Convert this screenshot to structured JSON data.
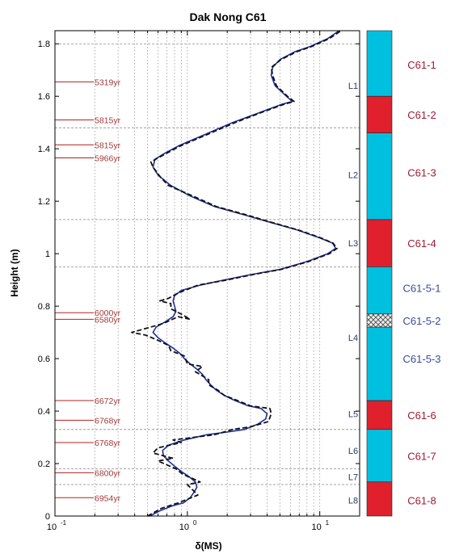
{
  "chart_data": {
    "type": "line",
    "title": "Dak Nong C61",
    "xlabel": "δ(MS)",
    "ylabel": "Height (m)",
    "xscale": "log",
    "xlim": [
      0.1,
      20
    ],
    "ylim": [
      0,
      1.85
    ],
    "x_ticks": [
      {
        "value": 0.1,
        "base": "10",
        "exp": "-1"
      },
      {
        "value": 1,
        "base": "10",
        "exp": "0"
      },
      {
        "value": 10,
        "base": "10",
        "exp": "1"
      }
    ],
    "y_ticks": [
      {
        "value": 0,
        "label": "0"
      },
      {
        "value": 0.2,
        "label": "0.2"
      },
      {
        "value": 0.4,
        "label": "0.4"
      },
      {
        "value": 0.6,
        "label": "0.6"
      },
      {
        "value": 0.8,
        "label": "0.8"
      },
      {
        "value": 1.0,
        "label": "1"
      },
      {
        "value": 1.2,
        "label": "1.2"
      },
      {
        "value": 1.4,
        "label": "1.4"
      },
      {
        "value": 1.6,
        "label": "1.6"
      },
      {
        "value": 1.8,
        "label": "1.8"
      }
    ],
    "grid": "vertical dotted at log minor ticks",
    "series": [
      {
        "style": "solid",
        "color": "#1f2f9a",
        "points": [
          [
            0.52,
            0.0
          ],
          [
            0.62,
            0.02
          ],
          [
            0.78,
            0.04
          ],
          [
            0.93,
            0.05
          ],
          [
            1.05,
            0.07
          ],
          [
            1.12,
            0.09
          ],
          [
            1.18,
            0.11
          ],
          [
            1.15,
            0.13
          ],
          [
            1.03,
            0.15
          ],
          [
            0.9,
            0.17
          ],
          [
            0.8,
            0.19
          ],
          [
            0.72,
            0.21
          ],
          [
            0.66,
            0.23
          ],
          [
            0.65,
            0.25
          ],
          [
            0.72,
            0.27
          ],
          [
            0.95,
            0.29
          ],
          [
            1.4,
            0.31
          ],
          [
            2.0,
            0.32
          ],
          [
            2.7,
            0.33
          ],
          [
            3.4,
            0.35
          ],
          [
            3.9,
            0.37
          ],
          [
            4.0,
            0.39
          ],
          [
            3.6,
            0.41
          ],
          [
            2.9,
            0.42
          ],
          [
            2.3,
            0.44
          ],
          [
            1.9,
            0.46
          ],
          [
            1.65,
            0.48
          ],
          [
            1.5,
            0.5
          ],
          [
            1.38,
            0.52
          ],
          [
            1.3,
            0.54
          ],
          [
            1.18,
            0.56
          ],
          [
            1.05,
            0.58
          ],
          [
            0.95,
            0.6
          ],
          [
            0.88,
            0.62
          ],
          [
            0.78,
            0.64
          ],
          [
            0.68,
            0.66
          ],
          [
            0.6,
            0.68
          ],
          [
            0.55,
            0.7
          ],
          [
            0.58,
            0.72
          ],
          [
            0.68,
            0.74
          ],
          [
            0.78,
            0.76
          ],
          [
            0.82,
            0.78
          ],
          [
            0.8,
            0.8
          ],
          [
            0.78,
            0.82
          ],
          [
            0.8,
            0.84
          ],
          [
            0.9,
            0.86
          ],
          [
            1.25,
            0.88
          ],
          [
            1.9,
            0.9
          ],
          [
            3.0,
            0.92
          ],
          [
            5.0,
            0.94
          ],
          [
            8.0,
            0.97
          ],
          [
            11.5,
            1.0
          ],
          [
            13.2,
            1.02
          ],
          [
            12.5,
            1.04
          ],
          [
            10.0,
            1.06
          ],
          [
            6.8,
            1.09
          ],
          [
            4.2,
            1.12
          ],
          [
            2.6,
            1.15
          ],
          [
            1.6,
            1.18
          ],
          [
            1.05,
            1.22
          ],
          [
            0.75,
            1.26
          ],
          [
            0.6,
            1.3
          ],
          [
            0.55,
            1.33
          ],
          [
            0.57,
            1.36
          ],
          [
            0.66,
            1.38
          ],
          [
            0.85,
            1.41
          ],
          [
            1.3,
            1.45
          ],
          [
            2.2,
            1.5
          ],
          [
            3.6,
            1.54
          ],
          [
            5.2,
            1.57
          ],
          [
            6.2,
            1.58
          ],
          [
            5.6,
            1.6
          ],
          [
            4.6,
            1.64
          ],
          [
            4.3,
            1.68
          ],
          [
            4.4,
            1.71
          ],
          [
            5.0,
            1.74
          ],
          [
            6.5,
            1.77
          ],
          [
            8.5,
            1.79
          ],
          [
            11.5,
            1.82
          ],
          [
            14.0,
            1.85
          ]
        ]
      },
      {
        "style": "dashed",
        "color": "#111111",
        "points": [
          [
            0.5,
            0.0
          ],
          [
            0.64,
            0.03
          ],
          [
            0.85,
            0.05
          ],
          [
            1.2,
            0.08
          ],
          [
            1.0,
            0.12
          ],
          [
            1.25,
            0.13
          ],
          [
            0.92,
            0.16
          ],
          [
            0.82,
            0.18
          ],
          [
            0.6,
            0.21
          ],
          [
            0.78,
            0.22
          ],
          [
            0.55,
            0.24
          ],
          [
            0.6,
            0.26
          ],
          [
            0.9,
            0.28
          ],
          [
            0.78,
            0.29
          ],
          [
            1.6,
            0.31
          ],
          [
            2.2,
            0.33
          ],
          [
            3.0,
            0.34
          ],
          [
            4.1,
            0.36
          ],
          [
            4.3,
            0.39
          ],
          [
            4.2,
            0.41
          ],
          [
            3.0,
            0.42
          ],
          [
            2.4,
            0.44
          ],
          [
            1.9,
            0.46
          ],
          [
            1.7,
            0.48
          ],
          [
            1.45,
            0.5
          ],
          [
            1.45,
            0.52
          ],
          [
            1.15,
            0.55
          ],
          [
            1.3,
            0.57
          ],
          [
            1.0,
            0.58
          ],
          [
            0.95,
            0.61
          ],
          [
            0.75,
            0.63
          ],
          [
            0.72,
            0.65
          ],
          [
            0.6,
            0.67
          ],
          [
            0.48,
            0.69
          ],
          [
            0.38,
            0.7
          ],
          [
            0.62,
            0.73
          ],
          [
            0.7,
            0.74
          ],
          [
            0.85,
            0.76
          ],
          [
            1.05,
            0.75
          ],
          [
            0.9,
            0.77
          ],
          [
            0.75,
            0.79
          ],
          [
            0.75,
            0.81
          ],
          [
            0.62,
            0.82
          ],
          [
            0.72,
            0.83
          ],
          [
            0.85,
            0.85
          ],
          [
            1.2,
            0.88
          ],
          [
            2.0,
            0.9
          ],
          [
            3.1,
            0.92
          ],
          [
            5.1,
            0.94
          ],
          [
            8.2,
            0.97
          ],
          [
            11.8,
            1.0
          ],
          [
            13.5,
            1.02
          ],
          [
            12.6,
            1.04
          ],
          [
            10.2,
            1.06
          ],
          [
            6.9,
            1.09
          ],
          [
            4.3,
            1.12
          ],
          [
            2.7,
            1.15
          ],
          [
            1.65,
            1.18
          ],
          [
            1.1,
            1.22
          ],
          [
            0.72,
            1.26
          ],
          [
            0.63,
            1.29
          ],
          [
            0.55,
            1.33
          ],
          [
            0.53,
            1.35
          ],
          [
            0.68,
            1.38
          ],
          [
            0.88,
            1.41
          ],
          [
            1.35,
            1.45
          ],
          [
            2.3,
            1.5
          ],
          [
            3.7,
            1.54
          ],
          [
            5.4,
            1.57
          ],
          [
            6.4,
            1.58
          ],
          [
            5.7,
            1.6
          ],
          [
            4.7,
            1.64
          ],
          [
            4.4,
            1.68
          ],
          [
            4.3,
            1.71
          ],
          [
            5.1,
            1.74
          ],
          [
            6.7,
            1.77
          ],
          [
            8.7,
            1.79
          ],
          [
            11.8,
            1.82
          ],
          [
            14.5,
            1.85
          ]
        ]
      }
    ],
    "age_markers": [
      {
        "label": "5319yr",
        "y": 1.655
      },
      {
        "label": "5815yr",
        "y": 1.51
      },
      {
        "label": "5815yr",
        "y": 1.415
      },
      {
        "label": "5966yr",
        "y": 1.365
      },
      {
        "label": "6000yr",
        "y": 0.775
      },
      {
        "label": "6580yr",
        "y": 0.75
      },
      {
        "label": "6672yr",
        "y": 0.44
      },
      {
        "label": "6768yr",
        "y": 0.365
      },
      {
        "label": "6768yr",
        "y": 0.28
      },
      {
        "label": "6800yr",
        "y": 0.165
      },
      {
        "label": "6954yr",
        "y": 0.07
      }
    ],
    "layer_boundaries": [
      1.8,
      1.48,
      1.13,
      0.95,
      0.33,
      0.18,
      0.12
    ],
    "layers": [
      {
        "label": "L1",
        "y": 1.64
      },
      {
        "label": "L2",
        "y": 1.3
      },
      {
        "label": "L3",
        "y": 1.04
      },
      {
        "label": "L4",
        "y": 0.68
      },
      {
        "label": "L5",
        "y": 0.39
      },
      {
        "label": "L6",
        "y": 0.25
      },
      {
        "label": "L7",
        "y": 0.15
      },
      {
        "label": "L8",
        "y": 0.06
      }
    ],
    "segments": [
      {
        "label": "C61-1",
        "y_top": 1.85,
        "y_bottom": 1.6,
        "fill": "#00c0e0",
        "label_color": "#a01a34",
        "pattern": false,
        "label_y": 1.72
      },
      {
        "label": "C61-2",
        "y_top": 1.6,
        "y_bottom": 1.46,
        "fill": "#e0202c",
        "label_color": "#a01a34",
        "pattern": false,
        "label_y": 1.53
      },
      {
        "label": "C61-3",
        "y_top": 1.46,
        "y_bottom": 1.13,
        "fill": "#00c0e0",
        "label_color": "#a01a34",
        "pattern": false,
        "label_y": 1.31
      },
      {
        "label": "C61-4",
        "y_top": 1.13,
        "y_bottom": 0.95,
        "fill": "#e0202c",
        "label_color": "#a01a34",
        "pattern": false,
        "label_y": 1.04
      },
      {
        "label": "C61-5-1",
        "y_top": 0.95,
        "y_bottom": 0.77,
        "fill": "#00c0e0",
        "label_color": "#3a4a9a",
        "pattern": false,
        "label_y": 0.87
      },
      {
        "label": "C61-5-2",
        "y_top": 0.77,
        "y_bottom": 0.72,
        "fill": "#e8e8e8",
        "label_color": "#3a4a9a",
        "pattern": true,
        "label_y": 0.745
      },
      {
        "label": "C61-5-3",
        "y_top": 0.72,
        "y_bottom": 0.44,
        "fill": "#00c0e0",
        "label_color": "#3a4a9a",
        "pattern": false,
        "label_y": 0.6
      },
      {
        "label": "C61-6",
        "y_top": 0.44,
        "y_bottom": 0.33,
        "fill": "#e0202c",
        "label_color": "#a01a34",
        "pattern": false,
        "label_y": 0.385
      },
      {
        "label": "C61-7",
        "y_top": 0.33,
        "y_bottom": 0.13,
        "fill": "#00c0e0",
        "label_color": "#a01a34",
        "pattern": false,
        "label_y": 0.23
      },
      {
        "label": "C61-8",
        "y_top": 0.13,
        "y_bottom": 0.0,
        "fill": "#e0202c",
        "label_color": "#a01a34",
        "pattern": false,
        "label_y": 0.06
      }
    ]
  }
}
